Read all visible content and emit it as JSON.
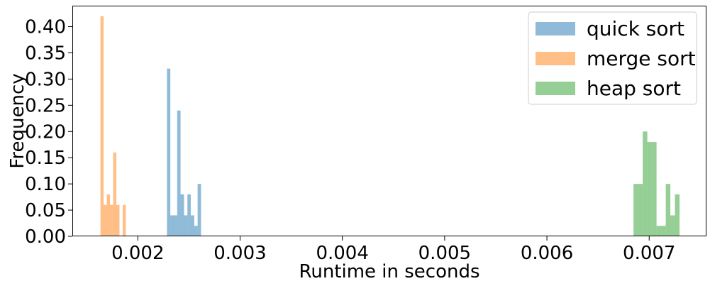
{
  "chart_data": {
    "type": "histogram",
    "xlabel": "Runtime in seconds",
    "ylabel": "Frequency",
    "xlim": [
      0.00136,
      0.00756
    ],
    "ylim": [
      0.0,
      0.44
    ],
    "x_ticks": [
      {
        "value": 0.002,
        "label": "0.002"
      },
      {
        "value": 0.003,
        "label": "0.003"
      },
      {
        "value": 0.004,
        "label": "0.004"
      },
      {
        "value": 0.005,
        "label": "0.005"
      },
      {
        "value": 0.006,
        "label": "0.006"
      },
      {
        "value": 0.007,
        "label": "0.007"
      }
    ],
    "y_ticks": [
      {
        "value": 0.0,
        "label": "0.00"
      },
      {
        "value": 0.05,
        "label": "0.05"
      },
      {
        "value": 0.1,
        "label": "0.10"
      },
      {
        "value": 0.15,
        "label": "0.15"
      },
      {
        "value": 0.2,
        "label": "0.20"
      },
      {
        "value": 0.25,
        "label": "0.25"
      },
      {
        "value": 0.3,
        "label": "0.30"
      },
      {
        "value": 0.35,
        "label": "0.35"
      },
      {
        "value": 0.4,
        "label": "0.40"
      }
    ],
    "legend_position": "top-right",
    "series": [
      {
        "name": "quick sort",
        "color": "#1f77b4",
        "opacity": 0.5,
        "bins": [
          {
            "x0": 0.002285,
            "x1": 0.002318,
            "value": 0.32
          },
          {
            "x0": 0.002318,
            "x1": 0.002352,
            "value": 0.04
          },
          {
            "x0": 0.002352,
            "x1": 0.002385,
            "value": 0.04
          },
          {
            "x0": 0.002385,
            "x1": 0.002418,
            "value": 0.24
          },
          {
            "x0": 0.002418,
            "x1": 0.002452,
            "value": 0.08
          },
          {
            "x0": 0.002452,
            "x1": 0.002485,
            "value": 0.04
          },
          {
            "x0": 0.002485,
            "x1": 0.002518,
            "value": 0.08
          },
          {
            "x0": 0.002518,
            "x1": 0.002552,
            "value": 0.04
          },
          {
            "x0": 0.002552,
            "x1": 0.002585,
            "value": 0.02
          },
          {
            "x0": 0.002585,
            "x1": 0.002618,
            "value": 0.1
          }
        ]
      },
      {
        "name": "merge sort",
        "color": "#ff7f0e",
        "opacity": 0.5,
        "bins": [
          {
            "x0": 0.001635,
            "x1": 0.001666,
            "value": 0.42
          },
          {
            "x0": 0.001666,
            "x1": 0.001697,
            "value": 0.06
          },
          {
            "x0": 0.001697,
            "x1": 0.001728,
            "value": 0.08
          },
          {
            "x0": 0.001728,
            "x1": 0.001759,
            "value": 0.06
          },
          {
            "x0": 0.001759,
            "x1": 0.00179,
            "value": 0.16
          },
          {
            "x0": 0.00179,
            "x1": 0.001821,
            "value": 0.06
          },
          {
            "x0": 0.001821,
            "x1": 0.001852,
            "value": 0.0
          },
          {
            "x0": 0.001852,
            "x1": 0.001883,
            "value": 0.06
          }
        ]
      },
      {
        "name": "heap sort",
        "color": "#2ca02c",
        "opacity": 0.5,
        "bins": [
          {
            "x0": 0.006847,
            "x1": 0.006892,
            "value": 0.1
          },
          {
            "x0": 0.006892,
            "x1": 0.006937,
            "value": 0.1
          },
          {
            "x0": 0.006937,
            "x1": 0.006982,
            "value": 0.2
          },
          {
            "x0": 0.006982,
            "x1": 0.007027,
            "value": 0.18
          },
          {
            "x0": 0.007027,
            "x1": 0.007072,
            "value": 0.18
          },
          {
            "x0": 0.007072,
            "x1": 0.007117,
            "value": 0.02
          },
          {
            "x0": 0.007117,
            "x1": 0.007162,
            "value": 0.02
          },
          {
            "x0": 0.007162,
            "x1": 0.007207,
            "value": 0.1
          },
          {
            "x0": 0.007207,
            "x1": 0.007252,
            "value": 0.04
          },
          {
            "x0": 0.007252,
            "x1": 0.007297,
            "value": 0.08
          }
        ]
      }
    ]
  }
}
